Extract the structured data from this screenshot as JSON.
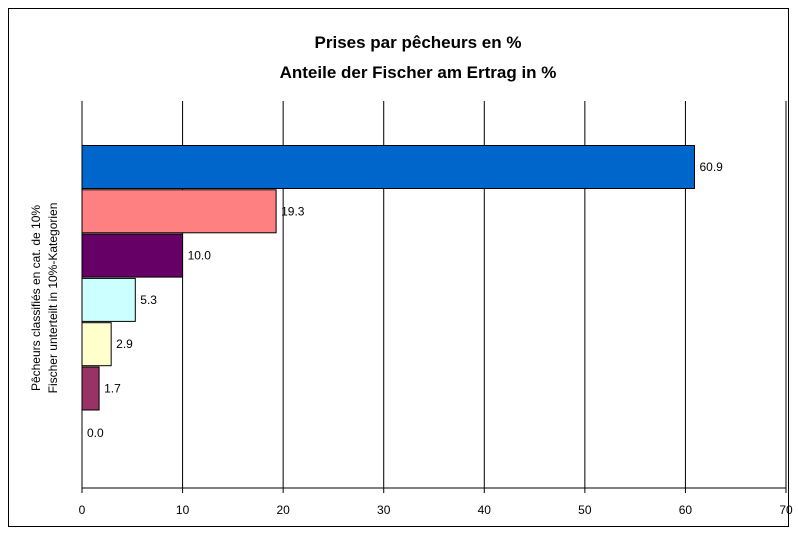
{
  "chart_data": {
    "type": "bar",
    "orientation": "horizontal",
    "title": [
      "Prises par pêcheurs en %",
      "Anteile der Fischer am Ertrag in %"
    ],
    "ylabel": [
      "Pêcheurs classifiés en cat. de 10%",
      "Fischer unterteilt in 10%-Kategorien"
    ],
    "xlabel": "",
    "xlim": [
      0,
      70
    ],
    "xticks": [
      0,
      10,
      20,
      30,
      40,
      50,
      60,
      70
    ],
    "grid": "vertical",
    "legend": "none",
    "values": [
      60.9,
      19.3,
      10.0,
      5.3,
      2.9,
      1.7,
      0.0
    ],
    "data_labels": [
      "60.9",
      "19.3",
      "10.0",
      "5.3",
      "2.9",
      "1.7",
      "0.0"
    ],
    "colors": [
      "#0066cc",
      "#ff8080",
      "#660066",
      "#ccffff",
      "#ffffcc",
      "#993366",
      "#cccccc"
    ]
  }
}
